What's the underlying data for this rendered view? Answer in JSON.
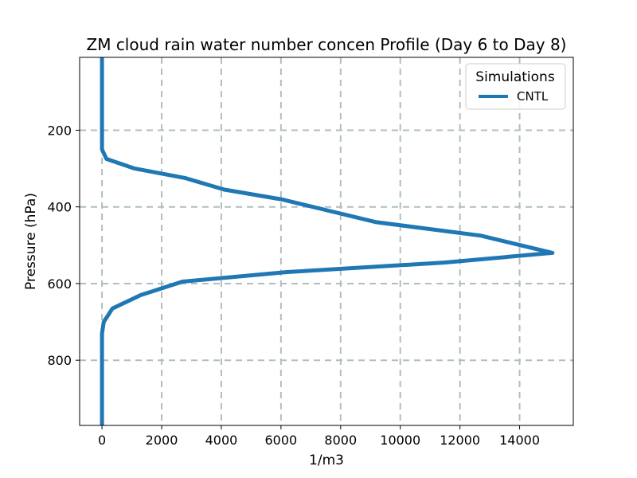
{
  "chart_data": {
    "type": "line",
    "title": "ZM cloud rain water number concen Profile (Day 6 to Day 8)",
    "xlabel": "1/m3",
    "ylabel": "Pressure (hPa)",
    "xlim": [
      -750,
      15800
    ],
    "ylim": [
      970,
      10
    ],
    "y_inverted": true,
    "xticks": [
      0,
      2000,
      4000,
      6000,
      8000,
      10000,
      12000,
      14000
    ],
    "xtick_labels": [
      "0",
      "2000",
      "4000",
      "6000",
      "8000",
      "10000",
      "12000",
      "14000"
    ],
    "yticks": [
      200,
      400,
      600,
      800
    ],
    "ytick_labels": [
      "200",
      "400",
      "600",
      "800"
    ],
    "grid": true,
    "legend": {
      "title": "Simulations",
      "position": "top-right"
    },
    "series": [
      {
        "name": "CNTL",
        "color": "#1f77b4",
        "x": [
          0,
          0,
          0,
          0,
          0,
          0,
          150,
          1100,
          2800,
          4100,
          6000,
          7600,
          9200,
          12700,
          15100,
          11500,
          6200,
          2700,
          1300,
          350,
          60,
          0,
          0,
          0,
          0,
          0
        ],
        "y": [
          10,
          50,
          100,
          150,
          200,
          250,
          275,
          300,
          325,
          355,
          380,
          410,
          440,
          475,
          520,
          545,
          570,
          595,
          630,
          665,
          700,
          730,
          750,
          800,
          900,
          970
        ]
      }
    ]
  }
}
